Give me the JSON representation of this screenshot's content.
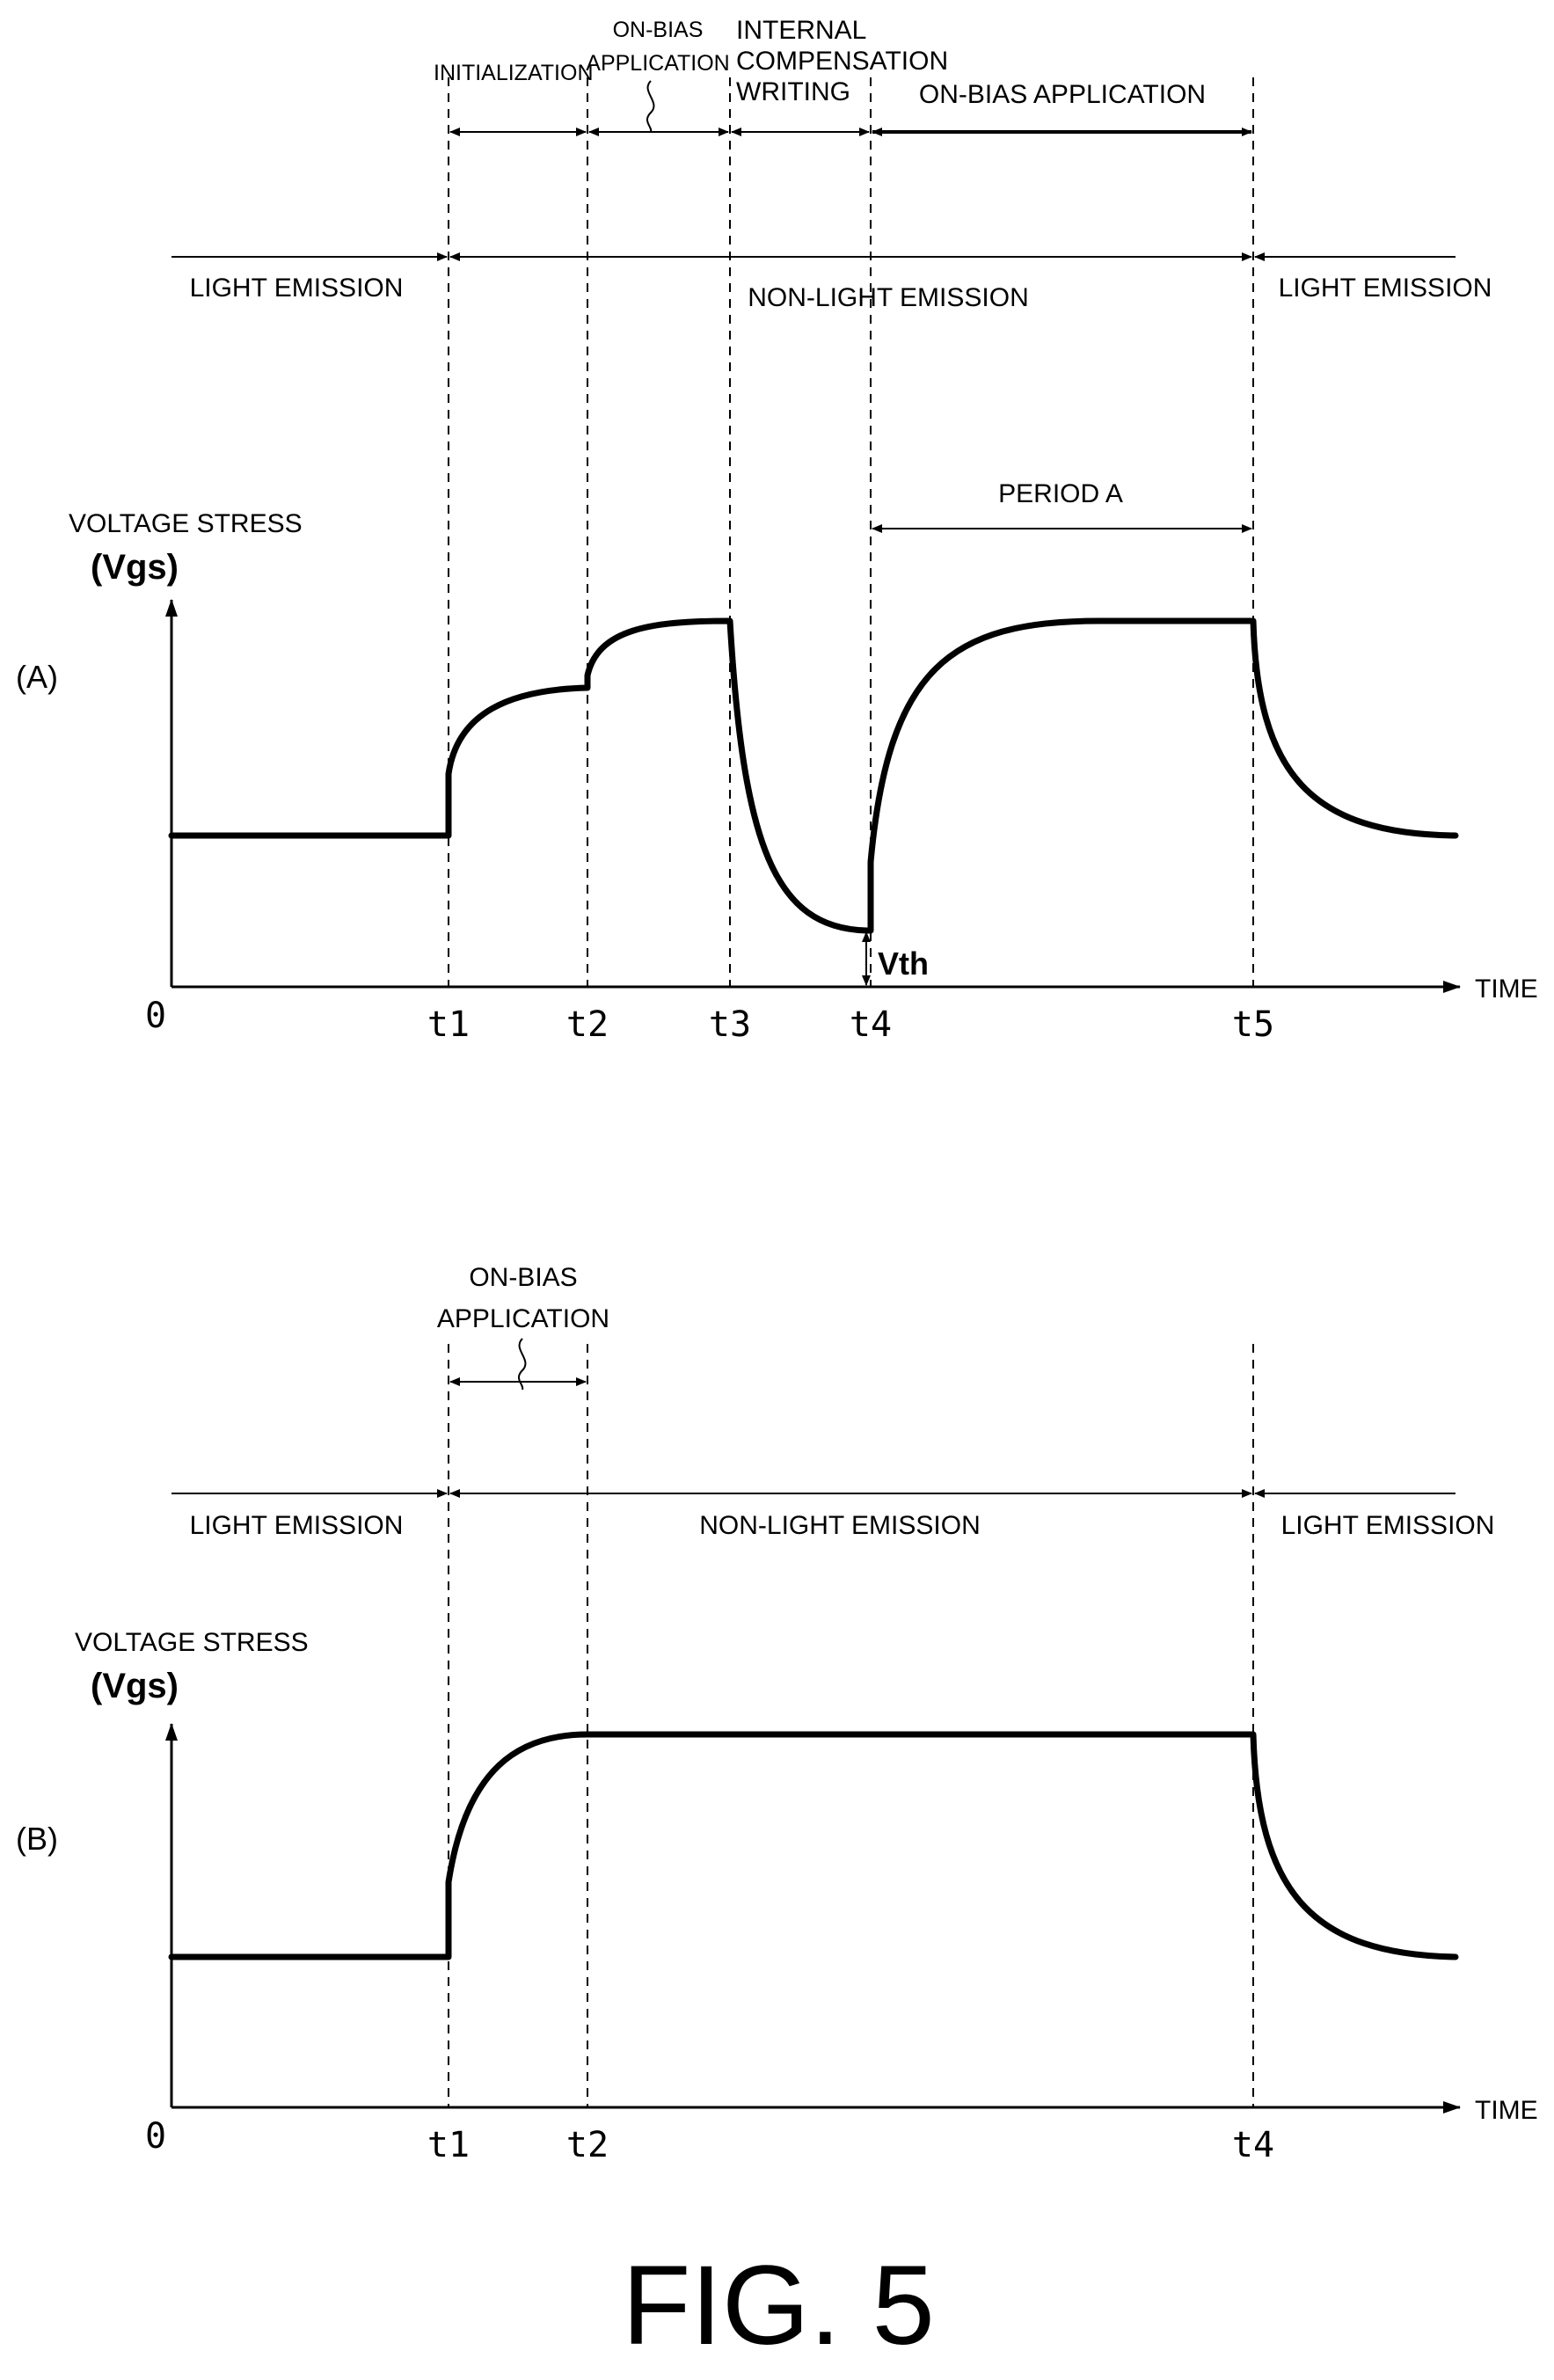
{
  "figure_label": "FIG. 5",
  "panel_a": {
    "label": "(A)",
    "y_axis_title": "VOLTAGE STRESS",
    "y_axis_symbol": "(Vgs)",
    "x_axis_label": "TIME",
    "origin": "0",
    "ticks": [
      "t1",
      "t2",
      "t3",
      "t4",
      "t5"
    ],
    "phases": {
      "initialization": "INITIALIZATION",
      "on_bias_1_line1": "ON-BIAS",
      "on_bias_1_line2": "APPLICATION",
      "internal_line1": "INTERNAL",
      "internal_line2": "COMPENSATION",
      "internal_line3": "WRITING",
      "on_bias_2": "ON-BIAS APPLICATION"
    },
    "emission": {
      "left": "LIGHT EMISSION",
      "middle": "NON-LIGHT EMISSION",
      "right": "LIGHT EMISSION"
    },
    "period_label": "PERIOD A",
    "vth_label": "Vth"
  },
  "panel_b": {
    "label": "(B)",
    "y_axis_title": "VOLTAGE STRESS",
    "y_axis_symbol": "(Vgs)",
    "x_axis_label": "TIME",
    "origin": "0",
    "ticks": [
      "t1",
      "t2",
      "t4"
    ],
    "phases": {
      "on_bias_line1": "ON-BIAS",
      "on_bias_line2": "APPLICATION"
    },
    "emission": {
      "left": "LIGHT EMISSION",
      "middle": "NON-LIGHT EMISSION",
      "right": "LIGHT EMISSION"
    }
  }
}
